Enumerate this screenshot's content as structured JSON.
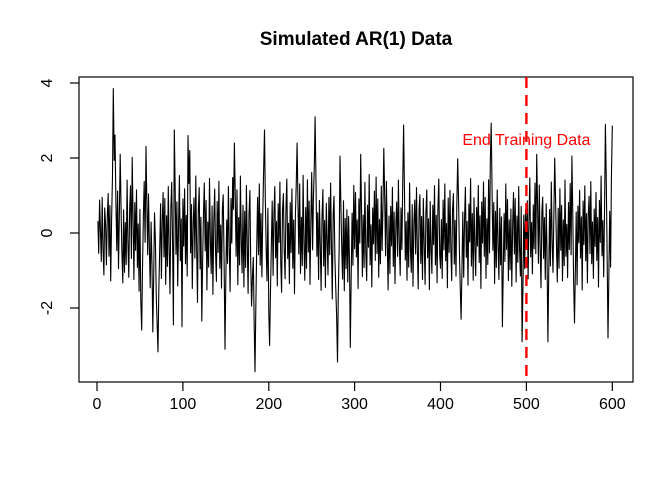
{
  "chart_data": {
    "type": "line",
    "title": "Simulated AR(1) Data",
    "xlabel": "",
    "ylabel": "",
    "grid": false,
    "background": "#FFFFFF",
    "series_color": "#000000",
    "x_ticks": [
      0,
      100,
      200,
      300,
      400,
      500,
      600
    ],
    "y_ticks": [
      -2,
      0,
      2,
      4
    ],
    "xlim": [
      -21,
      624
    ],
    "ylim": [
      -3.97,
      4.16
    ],
    "x_start": 1,
    "vline": {
      "x": 500,
      "color": "#FF0000",
      "style": "dashed",
      "label": "End Training Data",
      "label_x": 500,
      "label_y": 2.5
    },
    "values": [
      0.31,
      -0.54,
      0.88,
      0.12,
      -0.76,
      0.95,
      -0.38,
      -1.12,
      0.67,
      0.21,
      -0.85,
      0.44,
      1.05,
      -0.62,
      0.73,
      -1.28,
      0.36,
      1.52,
      3.85,
      1.94,
      2.61,
      0.83,
      -0.47,
      1.12,
      -0.95,
      0.38,
      2.1,
      0.75,
      -0.51,
      -1.33,
      0.62,
      -1.05,
      0.28,
      -0.84,
      1.41,
      -0.22,
      -1.18,
      0.57,
      1.26,
      -0.68,
      2.02,
      0.35,
      -1.24,
      0.81,
      -0.46,
      1.15,
      -0.92,
      0.24,
      -1.55,
      0.63,
      -1.82,
      -2.59,
      -0.94,
      0.48,
      1.37,
      -0.25,
      2.31,
      0.86,
      -0.58,
      1.04,
      -0.37,
      -1.46,
      0.29,
      -0.88,
      -2.64,
      -1.12,
      0.54,
      -0.21,
      -1.73,
      -2.38,
      -3.17,
      -1.55,
      -0.42,
      0.78,
      -1.21,
      0.33,
      1.08,
      -0.64,
      0.92,
      -1.37,
      0.46,
      -0.89,
      1.24,
      -0.33,
      -1.62,
      0.71,
      1.35,
      -0.28,
      -2.45,
      2.75,
      1.12,
      -0.57,
      0.83,
      -1.41,
      0.26,
      1.53,
      -0.74,
      0.38,
      -2.5,
      0.91,
      -0.35,
      1.18,
      -0.82,
      0.47,
      -1.15,
      2.6,
      1.32,
      2.2,
      -0.53,
      0.76,
      -1.48,
      0.25,
      0.94,
      -0.67,
      1.52,
      -0.31,
      -1.85,
      0.58,
      1.21,
      -0.96,
      0.42,
      -2.35,
      -0.78,
      0.55,
      1.33,
      -0.48,
      0.87,
      -1.52,
      0.29,
      -0.91,
      1.45,
      -0.26,
      -1.08,
      0.72,
      -1.64,
      0.31,
      1.17,
      -0.45,
      -1.29,
      0.84,
      -0.52,
      1.38,
      -0.94,
      0.21,
      -1.47,
      0.66,
      1.02,
      -0.73,
      -3.1,
      -1.28,
      0.35,
      -0.81,
      1.24,
      -0.44,
      -1.56,
      0.92,
      -0.27,
      1.48,
      0.63,
      2.4,
      0.88,
      -0.62,
      1.15,
      -1.38,
      0.41,
      -0.85,
      1.52,
      -0.23,
      -1.06,
      0.74,
      -1.44,
      0.58,
      -0.92,
      1.27,
      -0.36,
      -1.61,
      0.49,
      1.13,
      -0.78,
      -1.95,
      -1.22,
      -0.65,
      -2.48,
      -3.7,
      -1.84,
      -0.41,
      0.95,
      -0.58,
      1.31,
      -0.86,
      0.52,
      -1.17,
      0.38,
      1.62,
      2.75,
      0.94,
      -0.47,
      -1.28,
      0.66,
      -2.14,
      -3.0,
      -1.52,
      -0.38,
      0.85,
      -1.13,
      0.47,
      1.24,
      -0.66,
      0.31,
      -1.41,
      0.78,
      -0.25,
      1.36,
      -0.84,
      -1.58,
      0.62,
      1.05,
      -0.43,
      -1.22,
      0.57,
      1.44,
      -0.68,
      0.26,
      -1.35,
      0.81,
      -0.52,
      1.18,
      -0.94,
      0.35,
      -1.62,
      0.48,
      1.25,
      2.4,
      0.73,
      -0.56,
      1.31,
      -1.08,
      0.42,
      -0.87,
      1.54,
      -0.33,
      -1.26,
      0.68,
      -0.94,
      1.42,
      -0.51,
      0.85,
      -1.37,
      0.24,
      1.61,
      -0.45,
      0.92,
      1.78,
      3.1,
      1.35,
      -0.62,
      0.54,
      -1.24,
      0.87,
      -0.36,
      -1.53,
      0.41,
      1.16,
      -0.88,
      0.33,
      -1.45,
      0.79,
      -0.24,
      -1.12,
      0.95,
      -0.58,
      1.33,
      -0.41,
      -1.76,
      0.52,
      0.98,
      -0.65,
      -1.41,
      -2.2,
      -3.44,
      -1.62,
      -0.35,
      2.05,
      0.71,
      -0.48,
      -1.23,
      0.86,
      -1.54,
      0.39,
      -0.95,
      0.62,
      -1.31,
      0.44,
      -0.78,
      -3.05,
      -1.15,
      0.53,
      -0.86,
      1.27,
      -0.42,
      1.08,
      -0.64,
      0.35,
      -1.48,
      0.91,
      -0.27,
      2.1,
      0.65,
      -1.16,
      0.48,
      -0.92,
      1.35,
      -0.51,
      -1.27,
      0.74,
      -0.38,
      1.56,
      -0.85,
      0.22,
      -1.44,
      0.67,
      -0.29,
      1.12,
      -0.73,
      1.49,
      -0.55,
      0.91,
      -1.18,
      0.36,
      -0.82,
      1.25,
      -0.47,
      0.78,
      2.26,
      0.94,
      -0.61,
      1.38,
      -0.26,
      -1.52,
      0.45,
      -1.08,
      0.71,
      -0.34,
      1.22,
      -0.89,
      0.56,
      -1.35,
      0.28,
      0.83,
      -0.62,
      1.41,
      -0.25,
      -1.13,
      0.67,
      -0.44,
      1.28,
      2.88,
      1.05,
      -0.72,
      0.31,
      -1.26,
      0.54,
      -0.91,
      1.33,
      -0.48,
      -1.05,
      0.76,
      -1.42,
      0.29,
      0.88,
      -0.56,
      1.21,
      -0.37,
      -1.49,
      0.65,
      1.02,
      -0.81,
      0.44,
      -1.24,
      0.92,
      -0.28,
      -1.37,
      0.53,
      1.15,
      -0.66,
      0.38,
      -1.51,
      0.84,
      -0.42,
      -1.08,
      0.74,
      -0.31,
      1.26,
      -0.85,
      0.47,
      -1.33,
      0.62,
      1.44,
      -0.58,
      -0.94,
      0.36,
      -1.21,
      0.88,
      -0.45,
      1.31,
      -0.74,
      0.25,
      -1.46,
      0.93,
      -0.52,
      1.14,
      -0.38,
      -1.27,
      0.61,
      1.05,
      -0.83,
      0.34,
      -1.15,
      0.72,
      1.98,
      0.85,
      -0.47,
      -1.52,
      -2.3,
      -0.91,
      0.56,
      -1.18,
      0.43,
      1.22,
      -0.65,
      0.31,
      -1.39,
      0.77,
      -0.24,
      1.45,
      -0.88,
      0.52,
      -1.26,
      0.94,
      -0.41,
      -1.14,
      0.68,
      -0.35,
      1.27,
      -0.79,
      0.46,
      -1.48,
      0.83,
      -0.27,
      1.36,
      -0.62,
      0.95,
      -1.21,
      0.38,
      -0.84,
      1.42,
      -0.53,
      1.88,
      2.93,
      1.24,
      -0.46,
      0.81,
      -1.35,
      0.58,
      -0.92,
      1.15,
      -0.38,
      -1.24,
      0.66,
      -0.85,
      0.43,
      -2.5,
      -1.08,
      0.52,
      -0.76,
      1.31,
      -0.44,
      0.89,
      -1.27,
      0.35,
      -0.98,
      0.64,
      -1.42,
      0.27,
      1.08,
      -0.56,
      0.92,
      -1.31,
      0.45,
      -0.78,
      1.24,
      -0.37,
      -1.15,
      0.71,
      -2.9,
      -1.34,
      0.48,
      -0.95,
      0.62,
      -0.23,
      0.86,
      -1.22,
      0.39,
      1.47,
      -0.64,
      0.28,
      -1.09,
      0.75,
      -0.42,
      1.33,
      -0.55,
      2.1,
      0.67,
      -0.81,
      1.28,
      -0.34,
      -1.46,
      0.59,
      0.96,
      -0.68,
      0.41,
      -1.24,
      0.78,
      -0.52,
      -2.9,
      -1.15,
      0.63,
      -0.88,
      1.36,
      -0.29,
      -1.05,
      0.52,
      2.0,
      0.84,
      -0.38,
      -1.31,
      0.66,
      -0.94,
      1.18,
      -0.46,
      0.74,
      -1.28,
      0.35,
      -0.87,
      1.41,
      -0.62,
      0.23,
      -1.19,
      0.81,
      -0.44,
      1.32,
      -0.58,
      2.05,
      0.47,
      -1.25,
      -2.4,
      -0.93,
      0.56,
      -1.38,
      0.72,
      -0.26,
      1.14,
      -0.67,
      0.43,
      -1.52,
      0.85,
      -0.31,
      1.26,
      -0.74,
      0.52,
      -1.33,
      0.46,
      0.98,
      -0.55,
      1.37,
      -0.82,
      0.29,
      -1.21,
      0.64,
      -0.36,
      1.08,
      -0.73,
      0.41,
      -1.44,
      0.87,
      -0.25,
      1.52,
      -0.61,
      0.33,
      -1.17,
      0.76,
      2.9,
      1.34,
      -0.52,
      -2.8,
      -1.26,
      0.58,
      -0.91,
      1.45,
      2.85
    ]
  }
}
